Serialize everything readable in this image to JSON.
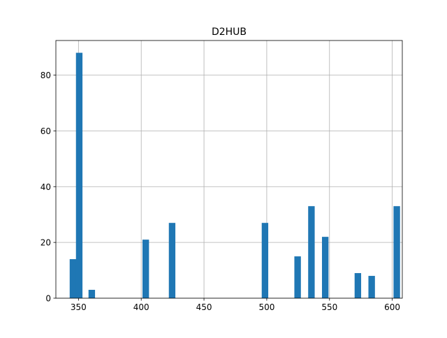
{
  "chart_data": {
    "type": "bar",
    "title": "D2HUB",
    "xlabel": "",
    "ylabel": "",
    "xlim": [
      332.0,
      608.0
    ],
    "ylim": [
      0,
      92.4
    ],
    "grid": true,
    "bar_color": "#1f77b4",
    "bin_width": 5.2,
    "xticks": [
      350,
      400,
      450,
      500,
      550,
      600
    ],
    "yticks": [
      0,
      20,
      40,
      60,
      80
    ],
    "bars": [
      {
        "x": 343,
        "value": 14
      },
      {
        "x": 348,
        "value": 88
      },
      {
        "x": 358,
        "value": 3
      },
      {
        "x": 401,
        "value": 21
      },
      {
        "x": 422,
        "value": 27
      },
      {
        "x": 496,
        "value": 27
      },
      {
        "x": 522,
        "value": 15
      },
      {
        "x": 533,
        "value": 33
      },
      {
        "x": 544,
        "value": 22
      },
      {
        "x": 570,
        "value": 9
      },
      {
        "x": 581,
        "value": 8
      },
      {
        "x": 601,
        "value": 33
      }
    ]
  }
}
